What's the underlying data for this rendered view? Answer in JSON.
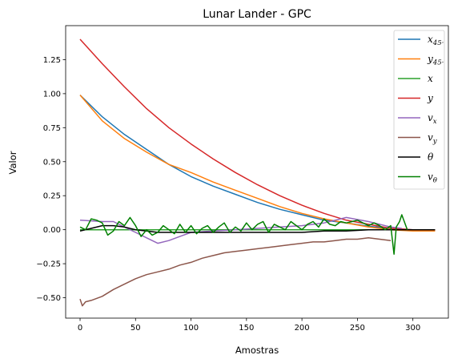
{
  "chart_data": {
    "type": "line",
    "title": "Lunar Lander - GPC",
    "xlabel": "Amostras",
    "ylabel": "Valor",
    "xlim": [
      -13,
      332
    ],
    "ylim": [
      -0.65,
      1.5
    ],
    "x_ticks": [
      0,
      50,
      100,
      150,
      200,
      250,
      300
    ],
    "y_ticks": [
      -0.5,
      -0.25,
      0.0,
      0.25,
      0.5,
      0.75,
      1.0,
      1.25
    ],
    "y_tick_labels": [
      "−0.50",
      "−0.25",
      "0.00",
      "0.25",
      "0.50",
      "0.75",
      "1.00",
      "1.25"
    ],
    "grid": false,
    "legend_position": "top-right",
    "series": [
      {
        "name": "x45",
        "legend_label": "x45·",
        "color": "#1f77b4",
        "x": [
          0,
          20,
          40,
          60,
          80,
          100,
          120,
          140,
          160,
          180,
          200,
          220,
          240,
          260,
          280,
          300,
          320
        ],
        "y": [
          0.99,
          0.83,
          0.7,
          0.59,
          0.48,
          0.39,
          0.32,
          0.26,
          0.2,
          0.15,
          0.11,
          0.07,
          0.05,
          0.025,
          0.01,
          0.0,
          0.0
        ]
      },
      {
        "name": "y45",
        "legend_label": "y45·",
        "color": "#ff7f0e",
        "x": [
          0,
          20,
          40,
          60,
          80,
          100,
          120,
          140,
          160,
          180,
          200,
          220,
          240,
          260,
          280,
          300,
          320
        ],
        "y": [
          0.99,
          0.8,
          0.67,
          0.57,
          0.48,
          0.42,
          0.35,
          0.29,
          0.23,
          0.17,
          0.12,
          0.08,
          0.05,
          0.02,
          0.0,
          -0.01,
          -0.01
        ]
      },
      {
        "name": "x",
        "legend_label": "x",
        "color": "#2ca02c",
        "x": [
          0,
          40,
          80,
          120,
          160,
          200,
          240,
          280,
          300,
          320
        ],
        "y": [
          0.0,
          0.0,
          0.0,
          0.0,
          0.0,
          0.0,
          0.0,
          0.0,
          0.0,
          0.0
        ]
      },
      {
        "name": "y",
        "legend_label": "y",
        "color": "#d62728",
        "x": [
          0,
          20,
          40,
          60,
          80,
          100,
          120,
          140,
          160,
          180,
          200,
          220,
          240,
          260,
          280,
          300,
          320
        ],
        "y": [
          1.4,
          1.22,
          1.05,
          0.89,
          0.75,
          0.63,
          0.52,
          0.42,
          0.33,
          0.25,
          0.18,
          0.12,
          0.07,
          0.04,
          0.01,
          0.0,
          0.0
        ]
      },
      {
        "name": "vx",
        "legend_label": "vx",
        "color": "#9467bd",
        "x": [
          0,
          10,
          20,
          30,
          40,
          50,
          60,
          70,
          80,
          90,
          100,
          120,
          140,
          160,
          180,
          200,
          220,
          240,
          260,
          280,
          290
        ],
        "y": [
          0.07,
          0.065,
          0.06,
          0.06,
          0.02,
          -0.02,
          -0.06,
          -0.1,
          -0.08,
          -0.05,
          -0.02,
          -0.01,
          0.0,
          0.01,
          0.02,
          0.03,
          0.05,
          0.09,
          0.06,
          0.02,
          0.01
        ]
      },
      {
        "name": "vy",
        "legend_label": "vy",
        "color": "#8c564b",
        "x": [
          0,
          2,
          5,
          10,
          20,
          30,
          40,
          50,
          60,
          70,
          80,
          90,
          100,
          110,
          120,
          130,
          140,
          150,
          160,
          170,
          180,
          190,
          200,
          210,
          220,
          230,
          240,
          250,
          260,
          270,
          280
        ],
        "y": [
          -0.51,
          -0.56,
          -0.53,
          -0.52,
          -0.49,
          -0.44,
          -0.4,
          -0.36,
          -0.33,
          -0.31,
          -0.29,
          -0.26,
          -0.24,
          -0.21,
          -0.19,
          -0.17,
          -0.16,
          -0.15,
          -0.14,
          -0.13,
          -0.12,
          -0.11,
          -0.1,
          -0.09,
          -0.09,
          -0.08,
          -0.07,
          -0.07,
          -0.06,
          -0.07,
          -0.08
        ]
      },
      {
        "name": "theta",
        "legend_label": "θ",
        "color": "#000000",
        "x": [
          0,
          10,
          20,
          30,
          40,
          50,
          60,
          70,
          80,
          100,
          120,
          140,
          160,
          180,
          200,
          220,
          240,
          260,
          280,
          300,
          320
        ],
        "y": [
          -0.01,
          0.01,
          0.03,
          0.03,
          0.02,
          0.0,
          -0.01,
          -0.02,
          -0.02,
          -0.02,
          -0.02,
          -0.02,
          -0.02,
          -0.02,
          -0.02,
          -0.01,
          -0.01,
          0.0,
          0.0,
          0.0,
          0.0
        ]
      },
      {
        "name": "vtheta",
        "legend_label": "vθ",
        "color": "#008000",
        "x": [
          0,
          5,
          10,
          15,
          20,
          25,
          30,
          35,
          40,
          45,
          50,
          55,
          60,
          65,
          70,
          75,
          80,
          85,
          90,
          95,
          100,
          105,
          110,
          115,
          120,
          125,
          130,
          135,
          140,
          145,
          150,
          155,
          160,
          165,
          170,
          175,
          180,
          185,
          190,
          195,
          200,
          205,
          210,
          215,
          220,
          225,
          230,
          235,
          240,
          245,
          250,
          255,
          260,
          265,
          270,
          275,
          280,
          283,
          285,
          288,
          290,
          295
        ],
        "y": [
          0.02,
          0.0,
          0.08,
          0.07,
          0.05,
          -0.04,
          -0.01,
          0.06,
          0.03,
          0.09,
          0.03,
          -0.05,
          0.0,
          -0.04,
          -0.02,
          0.03,
          0.0,
          -0.03,
          0.04,
          -0.02,
          0.03,
          -0.03,
          0.01,
          0.03,
          -0.02,
          0.02,
          0.05,
          -0.02,
          0.02,
          -0.01,
          0.05,
          0.0,
          0.04,
          0.06,
          -0.02,
          0.04,
          0.02,
          0.0,
          0.06,
          0.03,
          0.0,
          0.04,
          0.06,
          0.02,
          0.08,
          0.04,
          0.03,
          0.06,
          0.05,
          0.06,
          0.07,
          0.05,
          0.03,
          0.05,
          0.03,
          0.0,
          0.03,
          -0.18,
          0.02,
          0.06,
          0.11,
          0.0
        ]
      }
    ]
  }
}
